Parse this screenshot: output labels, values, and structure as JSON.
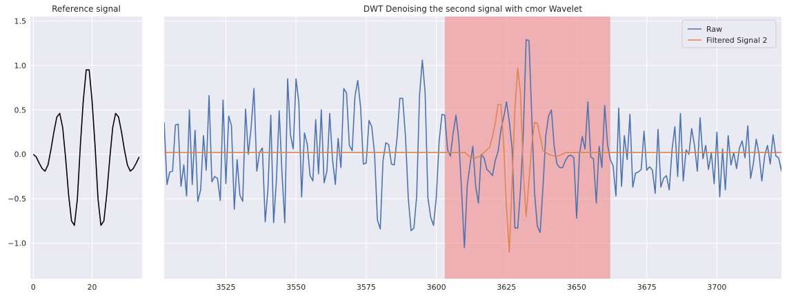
{
  "chart_data": [
    {
      "type": "line",
      "title": "Reference signal",
      "xlabel": "",
      "ylabel": "",
      "xlim": [
        -1,
        37
      ],
      "ylim": [
        -1.4,
        1.55
      ],
      "xticks": [
        0,
        20
      ],
      "yticks": [
        -1.0,
        -0.5,
        0.0,
        0.5,
        1.0,
        1.5
      ],
      "ytick_labels": [
        "−1.0",
        "−0.5",
        "0.0",
        "0.5",
        "1.0",
        "1.5"
      ],
      "grid": true,
      "series_color": "#000000",
      "x": [
        0,
        1,
        2,
        3,
        4,
        5,
        6,
        7,
        8,
        9,
        10,
        11,
        12,
        13,
        14,
        15,
        16,
        17,
        18,
        19,
        20,
        21,
        22,
        23,
        24,
        25,
        26,
        27,
        28,
        29,
        30,
        31,
        32,
        33,
        34,
        35,
        36
      ],
      "y": [
        0.0,
        -0.03,
        -0.1,
        -0.16,
        -0.19,
        -0.12,
        0.05,
        0.25,
        0.42,
        0.46,
        0.3,
        -0.05,
        -0.45,
        -0.75,
        -0.8,
        -0.5,
        0.1,
        0.6,
        0.95,
        0.95,
        0.6,
        0.1,
        -0.5,
        -0.8,
        -0.75,
        -0.45,
        -0.05,
        0.3,
        0.46,
        0.42,
        0.25,
        0.05,
        -0.12,
        -0.19,
        -0.16,
        -0.1,
        -0.03
      ]
    },
    {
      "type": "line",
      "title": "DWT Denoising the second signal with cmor Wavelet",
      "xlabel": "",
      "ylabel": "",
      "xlim": [
        3503,
        3723
      ],
      "ylim": [
        -1.4,
        1.55
      ],
      "xticks": [
        3525,
        3550,
        3575,
        3600,
        3625,
        3650,
        3675,
        3700
      ],
      "grid": true,
      "legend": "top-right",
      "highlight": {
        "x_start": 3603,
        "x_end": 3662,
        "color": "#f08080"
      },
      "series": [
        {
          "name": "Raw",
          "color": "#4c72b0",
          "x_start": 3503,
          "values": [
            0.36,
            -0.34,
            -0.2,
            -0.19,
            0.33,
            0.34,
            -0.36,
            -0.12,
            -0.47,
            0.5,
            -0.34,
            0.27,
            -0.53,
            -0.4,
            0.21,
            -0.18,
            0.66,
            -0.31,
            -0.25,
            -0.27,
            -0.52,
            0.61,
            -0.33,
            0.43,
            0.32,
            -0.62,
            -0.06,
            -0.46,
            -0.53,
            0.51,
            0.0,
            0.3,
            0.74,
            -0.19,
            0.02,
            0.07,
            -0.76,
            -0.39,
            0.44,
            -0.77,
            -0.3,
            0.49,
            -0.22,
            -0.77,
            0.85,
            0.22,
            0.06,
            0.85,
            0.58,
            -0.48,
            0.24,
            0.11,
            -0.24,
            -0.3,
            0.39,
            -0.22,
            0.5,
            -0.32,
            -0.19,
            0.46,
            -0.06,
            -0.34,
            0.18,
            -0.15,
            0.74,
            0.69,
            0.1,
            0.04,
            0.65,
            0.83,
            0.53,
            -0.11,
            -0.1,
            0.38,
            0.31,
            0.0,
            -0.74,
            -0.84,
            -0.07,
            0.13,
            0.11,
            -0.11,
            -0.12,
            0.19,
            0.63,
            0.63,
            0.2,
            -0.49,
            -0.86,
            -0.83,
            -0.47,
            0.66,
            1.06,
            0.7,
            -0.49,
            -0.71,
            -0.8,
            -0.48,
            0.15,
            0.45,
            0.44,
            0.05,
            -0.02,
            0.24,
            0.44,
            0.16,
            -0.41,
            -1.05,
            -0.35,
            -0.12,
            0.09,
            -0.36,
            -0.55,
            -0.0,
            -0.04,
            -0.17,
            -0.2,
            -0.24,
            -0.07,
            0.03,
            0.27,
            0.42,
            0.59,
            0.37,
            0.06,
            -0.83,
            -0.83,
            -0.39,
            0.23,
            1.29,
            1.28,
            0.44,
            -0.44,
            -0.81,
            -0.88,
            -0.37,
            0.21,
            0.43,
            0.5,
            0.09,
            -0.11,
            -0.15,
            -0.15,
            -0.07,
            -0.02,
            -0.01,
            -0.04,
            -0.72,
            0.0,
            0.2,
            0.06,
            0.59,
            -0.03,
            -0.05,
            -0.55,
            0.09,
            -0.15,
            0.55,
            0.11,
            -0.06,
            -0.13,
            -0.47,
            0.52,
            -0.36,
            0.21,
            -0.06,
            0.45,
            -0.37,
            -0.21,
            -0.2,
            -0.17,
            0.26,
            -0.18,
            -0.14,
            -0.18,
            -0.44,
            0.28,
            -0.37,
            -0.27,
            -0.24,
            -0.4,
            0.05,
            0.31,
            -0.25,
            0.46,
            -0.3,
            0.05,
            0.0,
            0.29,
            0.1,
            -0.19,
            0.41,
            -0.05,
            0.1,
            -0.17,
            0.02,
            -0.33,
            0.25,
            -0.48,
            0.06,
            -0.4,
            0.21,
            -0.12,
            0.02,
            -0.16,
            0.07,
            0.15,
            -0.04,
            0.32,
            -0.27,
            -0.1,
            0.17,
            0.0,
            -0.3,
            -0.02,
            0.1,
            -0.11,
            0.22,
            -0.02,
            -0.04,
            -0.19,
            0.25,
            -0.08,
            0.08,
            0.06,
            -0.28,
            0.03,
            -0.11,
            0.04,
            -0.08,
            0.01,
            0.12,
            -0.11,
            0.06,
            -0.03,
            0.04,
            -0.1,
            0.07,
            -0.05,
            0.02
          ]
        },
        {
          "name": "Filtered Signal 2",
          "color": "#dd8452",
          "x_start": 3503,
          "values": [
            0.02,
            0.02,
            0.02,
            0.02,
            0.02,
            0.02,
            0.02,
            0.02,
            0.02,
            0.02,
            0.02,
            0.02,
            0.02,
            0.02,
            0.02,
            0.02,
            0.02,
            0.02,
            0.02,
            0.02,
            0.02,
            0.02,
            0.02,
            0.02,
            0.02,
            0.02,
            0.02,
            0.02,
            0.02,
            0.02,
            0.02,
            0.02,
            0.02,
            0.02,
            0.02,
            0.02,
            0.02,
            0.02,
            0.02,
            0.02,
            0.02,
            0.02,
            0.02,
            0.02,
            0.02,
            0.02,
            0.02,
            0.02,
            0.02,
            0.02,
            0.02,
            0.02,
            0.02,
            0.02,
            0.02,
            0.02,
            0.02,
            0.02,
            0.02,
            0.02,
            0.02,
            0.02,
            0.02,
            0.02,
            0.02,
            0.02,
            0.02,
            0.02,
            0.02,
            0.02,
            0.02,
            0.02,
            0.02,
            0.02,
            0.02,
            0.02,
            0.02,
            0.02,
            0.02,
            0.02,
            0.02,
            0.02,
            0.02,
            0.02,
            0.02,
            0.02,
            0.02,
            0.02,
            0.02,
            0.02,
            0.02,
            0.02,
            0.02,
            0.02,
            0.02,
            0.02,
            0.02,
            0.02,
            0.02,
            0.02,
            0.02,
            0.02,
            0.02,
            0.02,
            0.02,
            0.02,
            0.02,
            0.02,
            0.0,
            -0.03,
            -0.04,
            -0.04,
            -0.03,
            -0.01,
            0.02,
            0.05,
            0.08,
            0.2,
            0.35,
            0.56,
            0.56,
            0.1,
            -0.6,
            -1.1,
            -0.3,
            0.5,
            0.97,
            0.68,
            -0.2,
            -0.7,
            -0.3,
            0.1,
            0.36,
            0.35,
            0.2,
            0.04,
            0.02,
            0.0,
            -0.01,
            -0.02,
            -0.02,
            -0.01,
            0.0,
            0.02,
            0.02,
            0.02,
            0.02,
            0.02,
            0.02,
            0.02,
            0.02,
            0.02,
            0.02,
            0.02,
            0.02,
            0.02,
            0.02,
            0.02,
            0.02,
            0.02,
            0.02,
            0.02,
            0.02,
            0.02,
            0.02,
            0.02,
            0.02,
            0.02,
            0.02,
            0.02,
            0.02,
            0.02,
            0.02,
            0.02,
            0.02,
            0.02,
            0.02,
            0.02,
            0.02,
            0.02,
            0.02,
            0.02,
            0.02,
            0.02,
            0.02,
            0.02,
            0.02,
            0.02,
            0.02,
            0.02,
            0.02,
            0.02,
            0.02,
            0.02,
            0.02,
            0.02,
            0.02,
            0.02,
            0.02,
            0.02,
            0.02,
            0.02,
            0.02,
            0.02,
            0.02,
            0.02,
            0.02,
            0.02,
            0.02,
            0.02,
            0.02,
            0.02,
            0.02,
            0.02,
            0.02,
            0.02,
            0.02,
            0.02,
            0.02,
            0.02,
            0.02,
            0.02,
            0.02,
            0.02,
            0.02,
            0.02,
            0.02,
            0.02,
            0.02,
            0.02,
            0.02,
            0.02,
            0.02,
            0.02,
            0.02,
            0.02,
            0.02,
            0.02,
            0.02,
            0.02
          ]
        }
      ]
    }
  ]
}
